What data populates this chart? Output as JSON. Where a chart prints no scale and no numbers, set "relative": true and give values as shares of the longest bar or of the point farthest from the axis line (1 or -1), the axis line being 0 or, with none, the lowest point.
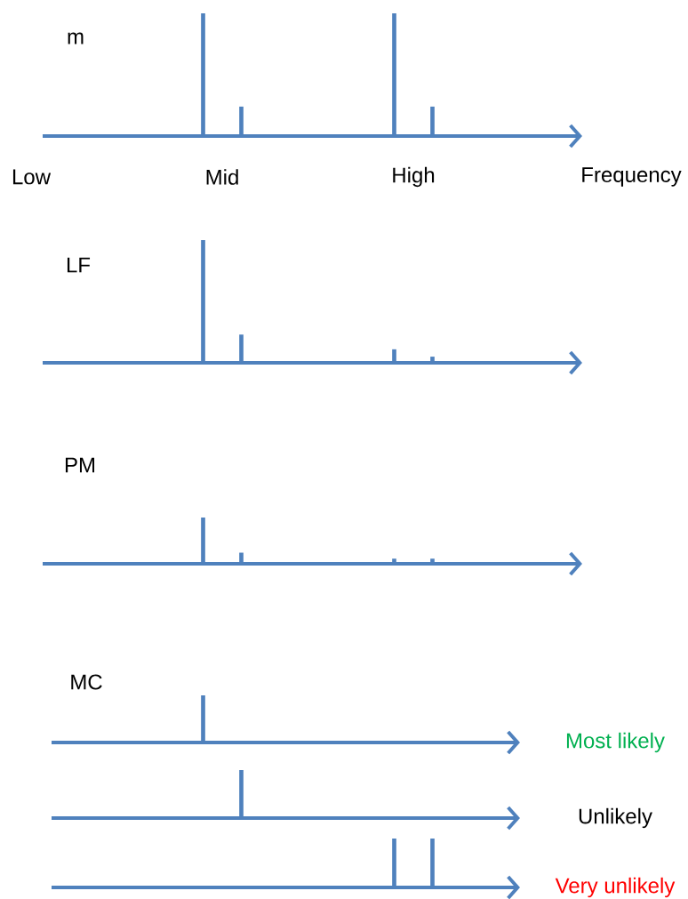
{
  "chart_data": [
    {
      "type": "bar",
      "title": "m",
      "categories": [
        "Low",
        "Mid",
        "High"
      ],
      "xlabel": "Frequency",
      "relative": true,
      "series": [
        {
          "color": "#4f81bd",
          "values": [
            null,
            1,
            1
          ]
        },
        {
          "color": "#4f81bd",
          "values": [
            null,
            0.24,
            0.24
          ]
        }
      ]
    },
    {
      "type": "bar",
      "title": "LF",
      "categories": [
        null,
        null,
        null
      ],
      "relative": true,
      "series": [
        {
          "color": "#4f81bd",
          "values": [
            null,
            1,
            0.11
          ]
        },
        {
          "color": "#4f81bd",
          "values": [
            null,
            0.23,
            0.05
          ]
        }
      ]
    },
    {
      "type": "bar",
      "title": "PM",
      "categories": [
        null,
        null,
        null
      ],
      "relative": true,
      "series": [
        {
          "color": "#4f81bd",
          "values": [
            null,
            1,
            0.11
          ]
        },
        {
          "color": "#4f81bd",
          "values": [
            null,
            0.24,
            0.11
          ]
        }
      ]
    },
    {
      "type": "bar",
      "title": "MC",
      "categories": [
        null,
        null,
        null
      ],
      "relative": true,
      "annotations": [
        "Most likely"
      ],
      "series": [
        {
          "color": "#4f81bd",
          "values": [
            null,
            1,
            null
          ]
        },
        {
          "color": "#4f81bd",
          "values": [
            null,
            null,
            null
          ]
        }
      ]
    },
    {
      "type": "bar",
      "categories": [
        null,
        null,
        null
      ],
      "relative": true,
      "annotations": [
        "Unlikely"
      ],
      "series": [
        {
          "color": "#4f81bd",
          "values": [
            null,
            null,
            null
          ]
        },
        {
          "color": "#4f81bd",
          "values": [
            null,
            1,
            null
          ]
        }
      ]
    },
    {
      "type": "bar",
      "categories": [
        null,
        null,
        null
      ],
      "relative": true,
      "annotations": [
        "Very unlikely"
      ],
      "series": [
        {
          "color": "#4f81bd",
          "values": [
            null,
            null,
            1
          ]
        },
        {
          "color": "#4f81bd",
          "values": [
            null,
            null,
            1
          ]
        }
      ]
    }
  ]
}
